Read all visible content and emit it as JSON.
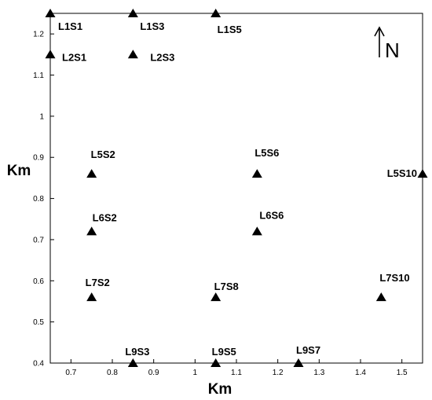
{
  "chart_data": {
    "type": "scatter",
    "xlabel": "Km",
    "ylabel": "Km",
    "xlim": [
      0.65,
      1.55
    ],
    "ylim": [
      0.4,
      1.25
    ],
    "xticks": [
      0.7,
      0.8,
      0.9,
      1,
      1.1,
      1.2,
      1.3,
      1.4,
      1.5
    ],
    "yticks": [
      0.4,
      0.5,
      0.6,
      0.7,
      0.8,
      0.9,
      1,
      1.1,
      1.2
    ],
    "grid": false,
    "marker": "triangle",
    "points": [
      {
        "label": "L1S1",
        "x": 0.65,
        "y": 1.25
      },
      {
        "label": "L1S3",
        "x": 0.85,
        "y": 1.25
      },
      {
        "label": "L1S5",
        "x": 1.05,
        "y": 1.25
      },
      {
        "label": "L2S1",
        "x": 0.65,
        "y": 1.15
      },
      {
        "label": "L2S3",
        "x": 0.85,
        "y": 1.15
      },
      {
        "label": "L5S2",
        "x": 0.75,
        "y": 0.86
      },
      {
        "label": "L5S6",
        "x": 1.15,
        "y": 0.86
      },
      {
        "label": "L5S10",
        "x": 1.55,
        "y": 0.86
      },
      {
        "label": "L6S2",
        "x": 0.75,
        "y": 0.72
      },
      {
        "label": "L6S6",
        "x": 1.15,
        "y": 0.72
      },
      {
        "label": "L7S2",
        "x": 0.75,
        "y": 0.56
      },
      {
        "label": "L7S8",
        "x": 1.05,
        "y": 0.56
      },
      {
        "label": "L7S10",
        "x": 1.45,
        "y": 0.56
      },
      {
        "label": "L9S3",
        "x": 0.85,
        "y": 0.4
      },
      {
        "label": "L9S5",
        "x": 1.05,
        "y": 0.4
      },
      {
        "label": "L9S7",
        "x": 1.25,
        "y": 0.4
      }
    ],
    "north_arrow": {
      "label": "N",
      "icon": "north-arrow-icon"
    }
  }
}
